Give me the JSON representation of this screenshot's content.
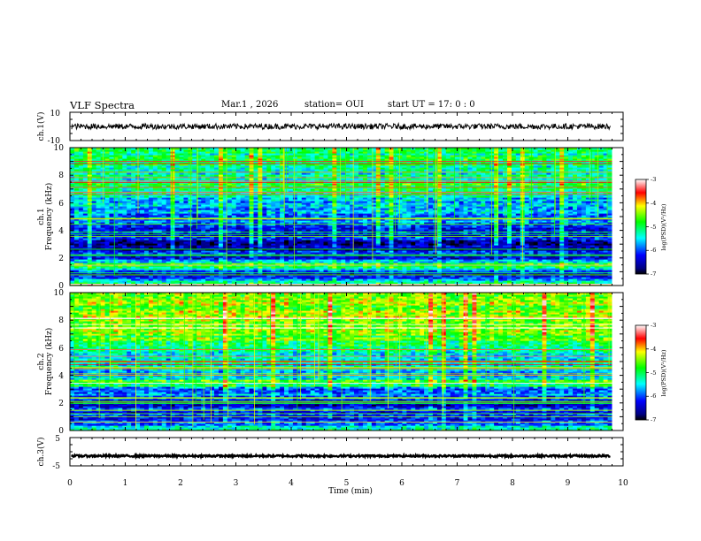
{
  "header": {
    "title": "VLF Spectra",
    "date": "Mar.1 , 2026",
    "station": "station= OUI",
    "start": "start UT = 17: 0 : 0"
  },
  "chart_data": [
    {
      "type": "line",
      "name": "ch1-waveform",
      "ylabel": "ch.1(V)",
      "ylim": [
        -10,
        10
      ],
      "yticks": [
        "10",
        "-10"
      ],
      "xlim": [
        0,
        10
      ],
      "trace": {
        "mean": 0,
        "amplitude": 2,
        "t_end": 9.8,
        "color": "#000000"
      }
    },
    {
      "type": "heatmap",
      "name": "ch1-spectrogram",
      "ylabel": "ch.1 Frequency (kHz)",
      "ylabel_channel": "ch.1",
      "ylabel_freq": "Frequency (kHz)",
      "ylim": [
        0,
        10
      ],
      "yticks": [
        "0",
        "2",
        "4",
        "6",
        "8",
        "10"
      ],
      "xlim": [
        0,
        10
      ],
      "data_end_min": 9.8,
      "levels": [
        {
          "f": 0.0,
          "v": -4.2
        },
        {
          "f": 0.5,
          "v": -6.2
        },
        {
          "f": 1.0,
          "v": -6.5
        },
        {
          "f": 1.5,
          "v": -4.6
        },
        {
          "f": 2.0,
          "v": -6.2
        },
        {
          "f": 3.0,
          "v": -6.6
        },
        {
          "f": 4.0,
          "v": -6.1
        },
        {
          "f": 5.0,
          "v": -5.9
        },
        {
          "f": 6.0,
          "v": -5.7
        },
        {
          "f": 7.0,
          "v": -5.0
        },
        {
          "f": 8.0,
          "v": -5.2
        },
        {
          "f": 9.0,
          "v": -5.1
        },
        {
          "f": 10.0,
          "v": -5.0
        }
      ],
      "colorbar": {
        "label": "log(PSD)(V²/Hz)",
        "vmin": -7,
        "vmax": -3,
        "ticks": [
          "-3",
          "-4",
          "-5",
          "-6",
          "-7"
        ]
      }
    },
    {
      "type": "heatmap",
      "name": "ch2-spectrogram",
      "ylabel": "ch.2 Frequency (kHz)",
      "ylabel_channel": "ch.2",
      "ylabel_freq": "Frequency (kHz)",
      "ylim": [
        0,
        10
      ],
      "yticks": [
        "0",
        "2",
        "4",
        "6",
        "8",
        "10"
      ],
      "xlim": [
        0,
        10
      ],
      "data_end_min": 9.8,
      "levels": [
        {
          "f": 0.0,
          "v": -5.2
        },
        {
          "f": 0.5,
          "v": -6.0
        },
        {
          "f": 1.0,
          "v": -6.2
        },
        {
          "f": 2.0,
          "v": -6.2
        },
        {
          "f": 3.0,
          "v": -5.8
        },
        {
          "f": 3.5,
          "v": -4.6
        },
        {
          "f": 4.0,
          "v": -5.6
        },
        {
          "f": 5.0,
          "v": -5.4
        },
        {
          "f": 6.0,
          "v": -5.0
        },
        {
          "f": 7.0,
          "v": -4.6
        },
        {
          "f": 8.0,
          "v": -4.5
        },
        {
          "f": 9.0,
          "v": -4.4
        },
        {
          "f": 10.0,
          "v": -4.4
        }
      ],
      "colorbar": {
        "label": "log(PSD)(V²/Hz)",
        "vmin": -7,
        "vmax": -3,
        "ticks": [
          "-3",
          "-4",
          "-5",
          "-6",
          "-7"
        ]
      }
    },
    {
      "type": "line",
      "name": "ch3-waveform",
      "ylabel": "ch.3(V)",
      "ylim": [
        -5,
        5
      ],
      "yticks": [
        "5",
        "-5"
      ],
      "xlim": [
        0,
        10
      ],
      "trace": {
        "mean": -1.5,
        "amplitude": 0.35,
        "t_end": 9.8,
        "color": "#000000"
      }
    }
  ],
  "xaxis": {
    "label": "Time (min)",
    "ticks": [
      "0",
      "1",
      "2",
      "3",
      "4",
      "5",
      "6",
      "7",
      "8",
      "9",
      "10"
    ]
  }
}
